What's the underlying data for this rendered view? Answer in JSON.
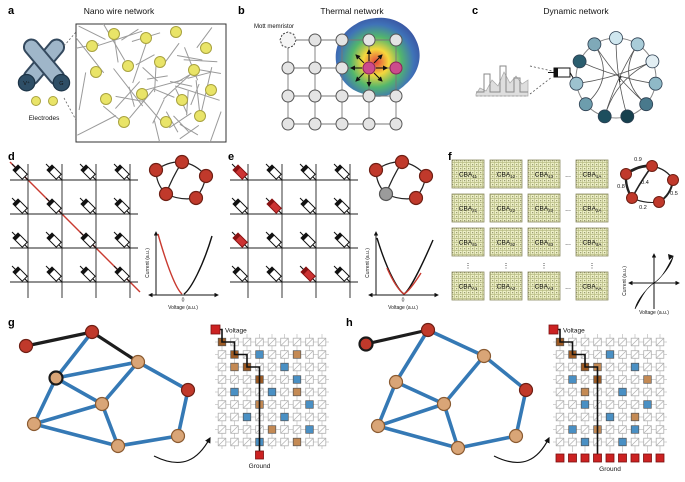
{
  "figure": {
    "panels": {
      "a": {
        "label": "a",
        "title": "Nano wire network",
        "electrodes": "Electrodes",
        "v_plus": "V⁺",
        "g_label": "G"
      },
      "b": {
        "label": "b",
        "title": "Thermal network",
        "mott": "Mott memristor"
      },
      "c": {
        "label": "c",
        "title": "Dynamic network",
        "t_label": "t",
        "node_colors": [
          "#cfe6ee",
          "#a9ccd8",
          "#e2eef3",
          "#8fb9c7",
          "#49798c",
          "#16404e",
          "#1d4e5e",
          "#6d9dad",
          "#9dc2cf",
          "#2a5d6e",
          "#7fa9b8"
        ]
      },
      "d": {
        "label": "d",
        "ylabel": "Current (a.u.)",
        "xlabel": "Voltage (a.u.)",
        "zero": "0"
      },
      "e": {
        "label": "e",
        "ylabel": "Current (a.u.)",
        "xlabel": "Voltage (a.u.)",
        "zero": "0"
      },
      "f": {
        "label": "f",
        "cba_prefix": "CBA",
        "cba_subscripts": [
          [
            "11",
            "12",
            "13",
            "1A"
          ],
          [
            "21",
            "22",
            "23",
            "2A"
          ],
          [
            "31",
            "32",
            "33",
            "3A"
          ],
          [
            "A1",
            "A2",
            "A3",
            "AA"
          ]
        ],
        "col_dots": "...",
        "row_dots": "⋮",
        "weights": {
          "w09": "0.9",
          "w05": "0.5",
          "w04": "0.4",
          "w02": "0.2",
          "w08": "0.8"
        },
        "ylabel": "Current (a.u.)",
        "xlabel": "Voltage (a.u.)"
      },
      "g": {
        "label": "g",
        "voltage": "Voltage",
        "ground": "Ground"
      },
      "h": {
        "label": "h",
        "voltage": "Voltage",
        "ground": "Ground"
      }
    },
    "colors": {
      "edge_blue": "#3579b5",
      "node_tan": "#d9a577",
      "node_red": "#c0392b",
      "cell_blue": "#4a90c4",
      "cell_tan": "#c48a54",
      "cell_brown": "#9c5a24",
      "cell_red": "#a02318",
      "terminal_red": "#cc2222",
      "wire_gray": "#9a9a9a",
      "node_yellow": "#e9e468"
    }
  }
}
